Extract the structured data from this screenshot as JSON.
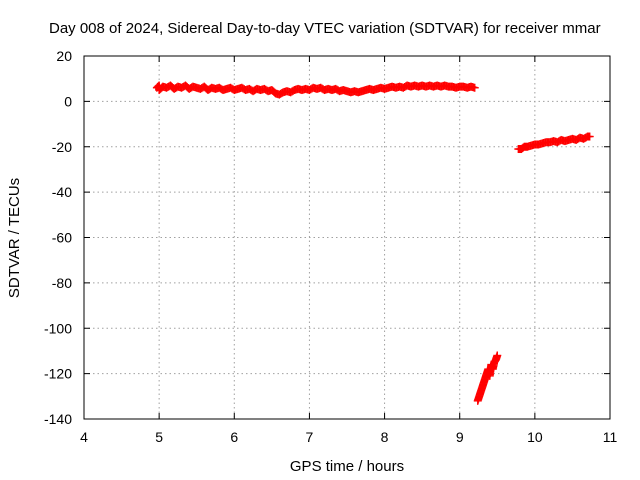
{
  "chart_data": {
    "type": "scatter",
    "title": "Day 008 of 2024, Sidereal Day-to-day VTEC variation (SDTVAR) for receiver mmar",
    "xlabel": "GPS time / hours",
    "ylabel": "SDTVAR / TECUs",
    "xlim": [
      4,
      11
    ],
    "ylim": [
      -140,
      20
    ],
    "xticks": [
      4,
      5,
      6,
      7,
      8,
      9,
      10,
      11
    ],
    "yticks": [
      -140,
      -120,
      -100,
      -80,
      -60,
      -40,
      -20,
      0,
      20
    ],
    "grid": true,
    "marker": "plus",
    "color": "#ff0000",
    "series": [
      {
        "values": [
          [
            4.97,
            6
          ],
          [
            5.0,
            7
          ],
          [
            5.0,
            5
          ],
          [
            5.05,
            6.5
          ],
          [
            5.1,
            6
          ],
          [
            5.15,
            7
          ],
          [
            5.2,
            5.5
          ],
          [
            5.25,
            6.5
          ],
          [
            5.3,
            6
          ],
          [
            5.35,
            7
          ],
          [
            5.4,
            5.5
          ],
          [
            5.45,
            6.5
          ],
          [
            5.5,
            6
          ],
          [
            5.55,
            5.5
          ],
          [
            5.6,
            6.5
          ],
          [
            5.65,
            5
          ],
          [
            5.7,
            6
          ],
          [
            5.75,
            5.5
          ],
          [
            5.8,
            6
          ],
          [
            5.85,
            5
          ],
          [
            5.9,
            5.5
          ],
          [
            5.95,
            6
          ],
          [
            6.0,
            5
          ],
          [
            6.05,
            5.5
          ],
          [
            6.1,
            6
          ],
          [
            6.15,
            5
          ],
          [
            6.2,
            5.5
          ],
          [
            6.25,
            4.5
          ],
          [
            6.3,
            5.5
          ],
          [
            6.35,
            5
          ],
          [
            6.4,
            5.5
          ],
          [
            6.45,
            4.5
          ],
          [
            6.5,
            5
          ],
          [
            6.55,
            3.5
          ],
          [
            6.6,
            3
          ],
          [
            6.65,
            4
          ],
          [
            6.7,
            4.5
          ],
          [
            6.75,
            4
          ],
          [
            6.8,
            5
          ],
          [
            6.85,
            5.5
          ],
          [
            6.9,
            5
          ],
          [
            6.95,
            5.5
          ],
          [
            7.0,
            5
          ],
          [
            7.05,
            6
          ],
          [
            7.1,
            5.5
          ],
          [
            7.15,
            6
          ],
          [
            7.2,
            5
          ],
          [
            7.25,
            5.5
          ],
          [
            7.3,
            5
          ],
          [
            7.35,
            5.5
          ],
          [
            7.4,
            4.5
          ],
          [
            7.45,
            5
          ],
          [
            7.5,
            4.5
          ],
          [
            7.55,
            4
          ],
          [
            7.6,
            4.5
          ],
          [
            7.65,
            4
          ],
          [
            7.7,
            4.5
          ],
          [
            7.75,
            5
          ],
          [
            7.8,
            5.5
          ],
          [
            7.85,
            5
          ],
          [
            7.9,
            5.5
          ],
          [
            7.95,
            6
          ],
          [
            8.0,
            5.5
          ],
          [
            8.05,
            6
          ],
          [
            8.1,
            6.5
          ],
          [
            8.15,
            6
          ],
          [
            8.2,
            6.5
          ],
          [
            8.25,
            6
          ],
          [
            8.3,
            7
          ],
          [
            8.35,
            6.5
          ],
          [
            8.4,
            7
          ],
          [
            8.45,
            6.5
          ],
          [
            8.5,
            7
          ],
          [
            8.55,
            6.5
          ],
          [
            8.6,
            7
          ],
          [
            8.65,
            6.5
          ],
          [
            8.7,
            7
          ],
          [
            8.75,
            6.5
          ],
          [
            8.8,
            7
          ],
          [
            8.85,
            6.5
          ],
          [
            8.9,
            6.5
          ],
          [
            8.95,
            6
          ],
          [
            9.0,
            6.5
          ],
          [
            9.05,
            6.5
          ],
          [
            9.1,
            6
          ],
          [
            9.15,
            6.5
          ],
          [
            9.2,
            6
          ]
        ]
      },
      {
        "values": [
          [
            9.24,
            -132
          ],
          [
            9.26,
            -130
          ],
          [
            9.28,
            -128
          ],
          [
            9.3,
            -126
          ],
          [
            9.32,
            -124
          ],
          [
            9.34,
            -122
          ],
          [
            9.36,
            -120
          ],
          [
            9.38,
            -118
          ],
          [
            9.4,
            -121
          ],
          [
            9.42,
            -116
          ],
          [
            9.44,
            -118
          ],
          [
            9.46,
            -115
          ],
          [
            9.48,
            -114
          ],
          [
            9.5,
            -112
          ]
        ]
      },
      {
        "values": [
          [
            9.78,
            -21
          ],
          [
            9.82,
            -21
          ],
          [
            9.86,
            -20
          ],
          [
            9.9,
            -20
          ],
          [
            9.95,
            -19.5
          ],
          [
            10.0,
            -19
          ],
          [
            10.05,
            -19
          ],
          [
            10.1,
            -18.5
          ],
          [
            10.15,
            -18
          ],
          [
            10.2,
            -18
          ],
          [
            10.25,
            -17.5
          ],
          [
            10.3,
            -18
          ],
          [
            10.35,
            -17
          ],
          [
            10.4,
            -17.5
          ],
          [
            10.45,
            -17
          ],
          [
            10.5,
            -16.5
          ],
          [
            10.55,
            -17
          ],
          [
            10.6,
            -16
          ],
          [
            10.65,
            -16.5
          ],
          [
            10.7,
            -15.5
          ],
          [
            10.73,
            -15.5
          ]
        ]
      }
    ]
  }
}
